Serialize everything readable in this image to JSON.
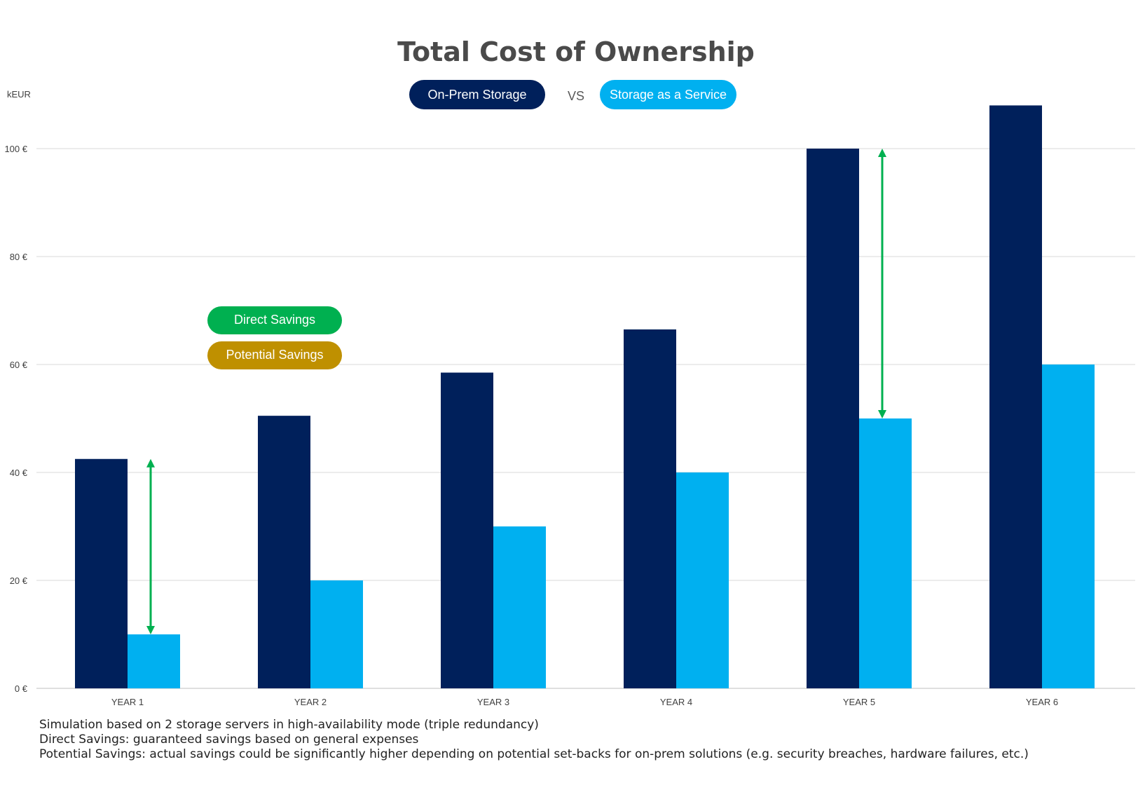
{
  "chart_data": {
    "type": "bar",
    "title": "Total Cost of Ownership",
    "ylabel": "kEUR",
    "xlabel": "",
    "categories": [
      "YEAR 1",
      "YEAR 2",
      "YEAR 3",
      "YEAR 4",
      "YEAR 5",
      "YEAR 6"
    ],
    "series": [
      {
        "name": "On-Prem Storage",
        "color": "#00205b",
        "values": [
          42.5,
          50.5,
          58.5,
          66.5,
          100,
          108
        ]
      },
      {
        "name": "Storage as a Service",
        "color": "#00b0f0",
        "values": [
          10,
          20,
          30,
          40,
          50,
          60
        ]
      }
    ],
    "vs_label": "VS",
    "ylim": [
      0,
      112
    ],
    "yticks": [
      0,
      20,
      40,
      60,
      80,
      100
    ],
    "ytick_labels": [
      "0 €",
      "20 €",
      "40 €",
      "60 €",
      "80 €",
      "100 €"
    ],
    "grid": true,
    "legend": "top-center",
    "annotations": {
      "direct_savings": {
        "label": "Direct Savings",
        "color": "#00b050"
      },
      "potential_savings": {
        "label": "Potential Savings",
        "color": "#bf9000"
      },
      "arrows": [
        {
          "category": "YEAR 1",
          "from": 42.5,
          "to": 10
        },
        {
          "category": "YEAR 5",
          "from": 100,
          "to": 50
        }
      ]
    }
  },
  "notes": [
    "Simulation based on 2 storage servers in high-availability mode (triple redundancy)",
    "Direct Savings: guaranteed savings based on general expenses",
    "Potential Savings: actual savings could be significantly higher depending on potential set-backs for on-prem solutions (e.g. security breaches, hardware failures, etc.)"
  ]
}
